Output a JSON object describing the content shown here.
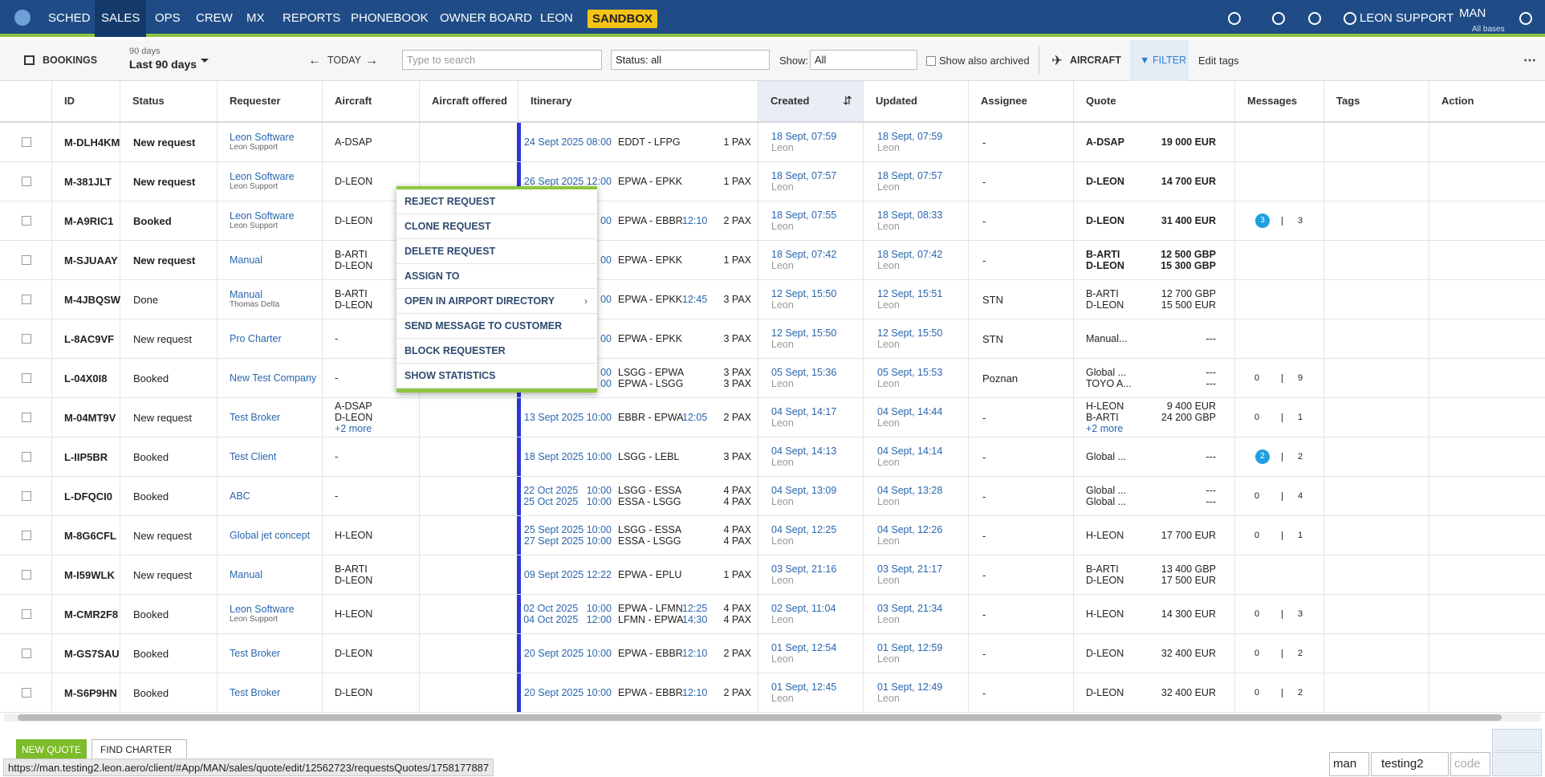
{
  "nav": {
    "items": [
      "SCHED",
      "SALES",
      "OPS",
      "CREW",
      "MX",
      "REPORTS",
      "PHONEBOOK",
      "OWNER BOARD",
      "LEON"
    ],
    "sandbox": "SANDBOX",
    "user": "LEON SUPPORT",
    "base": "MAN",
    "base_sub": "All bases"
  },
  "toolbar": {
    "bookings": "BOOKINGS",
    "range_small": "90 days",
    "range": "Last 90 days",
    "today": "TODAY",
    "search_placeholder": "Type to search",
    "status": "Status: all",
    "show_label": "Show:",
    "show": "All",
    "archived": "Show also archived",
    "aircraft": "AIRCRAFT",
    "filter": "FILTER",
    "edit_tags": "Edit tags"
  },
  "table": {
    "columns": [
      "ID",
      "Status",
      "Requester",
      "Aircraft",
      "Aircraft offered",
      "Itinerary",
      "Created",
      "Updated",
      "Assignee",
      "Quote",
      "Messages",
      "Tags",
      "Action"
    ],
    "rows": [
      {
        "id": "M-DLH4KM",
        "status": "New request",
        "highlight": true,
        "req": "Leon Software",
        "sub": "Leon Support",
        "ac": [
          "A-DSAP"
        ],
        "itin": [
          {
            "date": "24 Sept 2025 08:00",
            "route": "EDDT - LFPG",
            "pax": "1 PAX"
          }
        ],
        "created": [
          "18 Sept, 07:59",
          "Leon"
        ],
        "updated": [
          "18 Sept, 07:59",
          "Leon"
        ],
        "assignee": "-",
        "quote": [
          [
            "A-DSAP",
            "19 000 EUR"
          ]
        ]
      },
      {
        "id": "M-381JLT",
        "status": "New request",
        "highlight": true,
        "req": "Leon Software",
        "sub": "Leon Support",
        "ac": [
          "D-LEON"
        ],
        "itin": [
          {
            "date": "26 Sept 2025 12:00",
            "route": "EPWA - EPKK",
            "pax": "1 PAX"
          }
        ],
        "created": [
          "18 Sept, 07:57",
          "Leon"
        ],
        "updated": [
          "18 Sept, 07:57",
          "Leon"
        ],
        "assignee": "-",
        "quote": [
          [
            "D-LEON",
            "14 700 EUR"
          ]
        ]
      },
      {
        "id": "M-A9RIC1",
        "status": "Booked",
        "highlight": true,
        "req": "Leon Software",
        "sub": "Leon Support",
        "ac": [
          "D-LEON"
        ],
        "itin": [
          {
            "date": "00",
            "route": "EPWA - EBBR",
            "arr": "12:10",
            "pax": "2 PAX"
          }
        ],
        "created": [
          "18 Sept, 07:55",
          "Leon"
        ],
        "updated": [
          "18 Sept, 08:33",
          "Leon"
        ],
        "assignee": "-",
        "quote": [
          [
            "D-LEON",
            "31 400 EUR"
          ]
        ],
        "messages": {
          "unread": 3,
          "total": 3
        }
      },
      {
        "id": "M-SJUAAY",
        "status": "New request",
        "highlight": true,
        "req": "Manual",
        "ac": [
          "B-ARTI",
          "D-LEON"
        ],
        "itin": [
          {
            "date": "00",
            "route": "EPWA - EPKK",
            "pax": "1 PAX"
          }
        ],
        "created": [
          "18 Sept, 07:42",
          "Leon"
        ],
        "updated": [
          "18 Sept, 07:42",
          "Leon"
        ],
        "assignee": "-",
        "quote": [
          [
            "B-ARTI",
            "12 500 GBP"
          ],
          [
            "D-LEON",
            "15 300 GBP"
          ]
        ]
      },
      {
        "id": "M-4JBQSW",
        "status": "Done",
        "req": "Manual",
        "sub": "Thomas Delta",
        "ac": [
          "B-ARTI",
          "D-LEON"
        ],
        "itin": [
          {
            "date": "00",
            "route": "EPWA - EPKK",
            "arr": "12:45",
            "pax": "3 PAX"
          }
        ],
        "created": [
          "12 Sept, 15:50",
          "Leon"
        ],
        "updated": [
          "12 Sept, 15:51",
          "Leon"
        ],
        "assignee": "STN",
        "quote": [
          [
            "B-ARTI",
            "12 700 GBP"
          ],
          [
            "D-LEON",
            "15 500 EUR"
          ]
        ]
      },
      {
        "id": "L-8AC9VF",
        "status": "New request",
        "req": "Pro Charter",
        "ac": [
          "-"
        ],
        "itin": [
          {
            "date": "00",
            "route": "EPWA - EPKK",
            "pax": "3 PAX"
          }
        ],
        "created": [
          "12 Sept, 15:50",
          "Leon"
        ],
        "updated": [
          "12 Sept, 15:50",
          "Leon"
        ],
        "assignee": "STN",
        "quote": [
          [
            "Manual...",
            "---"
          ]
        ]
      },
      {
        "id": "L-04X0I8",
        "status": "Booked",
        "req": "New Test Company",
        "ac": [
          "-"
        ],
        "itin": [
          {
            "date": "00",
            "route": "LSGG - EPWA",
            "pax": "3 PAX"
          },
          {
            "date": "00",
            "route": "EPWA - LSGG",
            "pax": "3 PAX"
          }
        ],
        "created": [
          "05 Sept, 15:36",
          "Leon"
        ],
        "updated": [
          "05 Sept, 15:53",
          "Leon"
        ],
        "assignee": "Poznan",
        "quote": [
          [
            "Global ...",
            "---"
          ],
          [
            "TOYO A...",
            "---"
          ]
        ],
        "messages": {
          "unread": 0,
          "total": 9
        }
      },
      {
        "id": "M-04MT9V",
        "status": "New request",
        "req": "Test Broker",
        "ac": [
          "A-DSAP",
          "D-LEON"
        ],
        "ac_more": "+2 more",
        "itin": [
          {
            "date": "13 Sept 2025 10:00",
            "route": "EBBR - EPWA",
            "arr": "12:05",
            "pax": "2 PAX"
          }
        ],
        "created": [
          "04 Sept, 14:17",
          "Leon"
        ],
        "updated": [
          "04 Sept, 14:44",
          "Leon"
        ],
        "assignee": "-",
        "quote": [
          [
            "H-LEON",
            "9 400 EUR"
          ],
          [
            "B-ARTI",
            "24 200 GBP"
          ]
        ],
        "quote_more": "+2 more",
        "messages": {
          "unread": 0,
          "total": 1
        }
      },
      {
        "id": "L-IIP5BR",
        "status": "Booked",
        "req": "Test Client",
        "ac": [
          "-"
        ],
        "itin": [
          {
            "date": "18 Sept 2025 10:00",
            "route": "LSGG - LEBL",
            "pax": "3 PAX"
          }
        ],
        "created": [
          "04 Sept, 14:13",
          "Leon"
        ],
        "updated": [
          "04 Sept, 14:14",
          "Leon"
        ],
        "assignee": "-",
        "quote": [
          [
            "Global ...",
            "---"
          ]
        ],
        "messages": {
          "unread": 2,
          "total": 2
        }
      },
      {
        "id": "L-DFQCI0",
        "status": "Booked",
        "req": "ABC",
        "ac": [
          "-"
        ],
        "itin": [
          {
            "date": "22 Oct 2025   10:00",
            "route": "LSGG - ESSA",
            "pax": "4 PAX"
          },
          {
            "date": "25 Oct 2025   10:00",
            "route": "ESSA - LSGG",
            "pax": "4 PAX"
          }
        ],
        "created": [
          "04 Sept, 13:09",
          "Leon"
        ],
        "updated": [
          "04 Sept, 13:28",
          "Leon"
        ],
        "assignee": "-",
        "quote": [
          [
            "Global ...",
            "---"
          ],
          [
            "Global ...",
            "---"
          ]
        ],
        "messages": {
          "unread": 0,
          "total": 4
        }
      },
      {
        "id": "M-8G6CFL",
        "status": "New request",
        "req": "Global jet concept",
        "ac": [
          "H-LEON"
        ],
        "itin": [
          {
            "date": "25 Sept 2025 10:00",
            "route": "LSGG - ESSA",
            "pax": "4 PAX"
          },
          {
            "date": "27 Sept 2025 10:00",
            "route": "ESSA - LSGG",
            "pax": "4 PAX"
          }
        ],
        "created": [
          "04 Sept, 12:25",
          "Leon"
        ],
        "updated": [
          "04 Sept, 12:26",
          "Leon"
        ],
        "assignee": "-",
        "quote": [
          [
            "H-LEON",
            "17 700 EUR"
          ]
        ],
        "messages": {
          "unread": 0,
          "total": 1
        }
      },
      {
        "id": "M-I59WLK",
        "status": "New request",
        "req": "Manual",
        "ac": [
          "B-ARTI",
          "D-LEON"
        ],
        "itin": [
          {
            "date": "09 Sept 2025 12:22",
            "route": "EPWA - EPLU",
            "pax": "1 PAX"
          }
        ],
        "created": [
          "03 Sept, 21:16",
          "Leon"
        ],
        "updated": [
          "03 Sept, 21:17",
          "Leon"
        ],
        "assignee": "-",
        "quote": [
          [
            "B-ARTI",
            "13 400 GBP"
          ],
          [
            "D-LEON",
            "17 500 EUR"
          ]
        ]
      },
      {
        "id": "M-CMR2F8",
        "status": "Booked",
        "req": "Leon Software",
        "sub": "Leon Support",
        "ac": [
          "H-LEON"
        ],
        "itin": [
          {
            "date": "02 Oct 2025   10:00",
            "route": "EPWA - LFMN",
            "arr": "12:25",
            "pax": "4 PAX"
          },
          {
            "date": "04 Oct 2025   12:00",
            "route": "LFMN - EPWA",
            "arr": "14:30",
            "pax": "4 PAX"
          }
        ],
        "created": [
          "02 Sept, 11:04",
          "Leon"
        ],
        "updated": [
          "03 Sept, 21:34",
          "Leon"
        ],
        "assignee": "-",
        "quote": [
          [
            "H-LEON",
            "14 300 EUR"
          ]
        ],
        "messages": {
          "unread": 0,
          "total": 3
        }
      },
      {
        "id": "M-GS7SAU",
        "status": "Booked",
        "req": "Test Broker",
        "ac": [
          "D-LEON"
        ],
        "itin": [
          {
            "date": "20 Sept 2025 10:00",
            "route": "EPWA - EBBR",
            "arr": "12:10",
            "pax": "2 PAX"
          }
        ],
        "created": [
          "01 Sept, 12:54",
          "Leon"
        ],
        "updated": [
          "01 Sept, 12:59",
          "Leon"
        ],
        "assignee": "-",
        "quote": [
          [
            "D-LEON",
            "32 400 EUR"
          ]
        ],
        "messages": {
          "unread": 0,
          "total": 2
        }
      },
      {
        "id": "M-S6P9HN",
        "status": "Booked",
        "req": "Test Broker",
        "ac": [
          "D-LEON"
        ],
        "itin": [
          {
            "date": "20 Sept 2025 10:00",
            "route": "EPWA - EBBR",
            "arr": "12:10",
            "pax": "2 PAX"
          }
        ],
        "created": [
          "01 Sept, 12:45",
          "Leon"
        ],
        "updated": [
          "01 Sept, 12:49",
          "Leon"
        ],
        "assignee": "-",
        "quote": [
          [
            "D-LEON",
            "32 400 EUR"
          ]
        ],
        "messages": {
          "unread": 0,
          "total": 2
        }
      }
    ]
  },
  "context_menu": [
    "REJECT REQUEST",
    "CLONE REQUEST",
    "DELETE REQUEST",
    "ASSIGN TO",
    "OPEN IN AIRPORT DIRECTORY",
    "SEND MESSAGE TO CUSTOMER",
    "BLOCK REQUESTER",
    "SHOW STATISTICS"
  ],
  "footer": {
    "new_quote": "NEW QUOTE",
    "find_charter": "FIND CHARTER",
    "status_url": "https://man.testing2.leon.aero/client/#App/MAN/sales/quote/edit/12562723/requestsQuotes/1758177887",
    "login": [
      "man",
      "testing2"
    ],
    "code_placeholder": "code"
  }
}
